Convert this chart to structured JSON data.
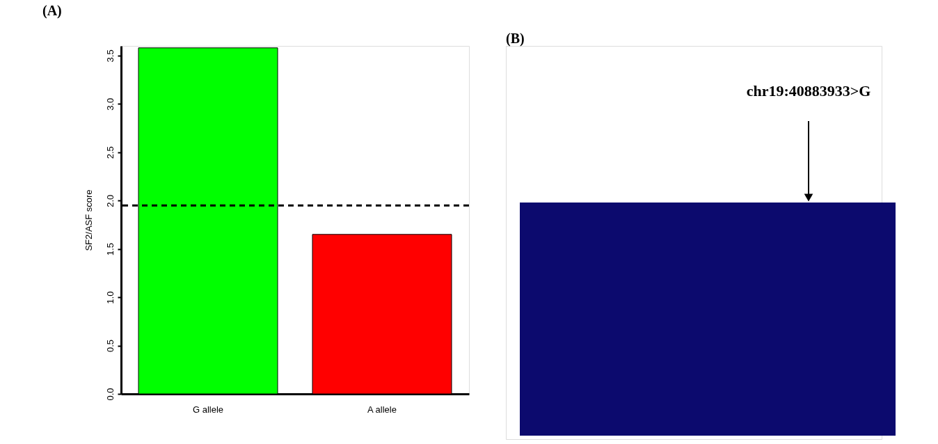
{
  "chart_data": [
    {
      "type": "bar",
      "title": "(A)",
      "ylabel": "SF2/ASF score",
      "categories": [
        "G allele",
        "A allele"
      ],
      "values": [
        3.58,
        1.65
      ],
      "colors": [
        "#00ff00",
        "#ff0000"
      ],
      "ylim": [
        0,
        3.6
      ],
      "yticks": [
        {
          "value": 0,
          "label": "0.0"
        },
        0.5,
        {
          "value": 1,
          "label": "1.0"
        },
        1.5,
        {
          "value": 2,
          "label": "2.0"
        },
        2.5,
        {
          "value": 3,
          "label": "3.0"
        },
        3.5
      ],
      "ref_lines": [
        {
          "axis": "y",
          "value": 1.95,
          "line_style": "dashed",
          "color": "#000000"
        }
      ],
      "grid": false
    },
    {
      "type": "other",
      "title": "(B)",
      "annotations": [
        "chr19:40883933>G"
      ]
    }
  ]
}
